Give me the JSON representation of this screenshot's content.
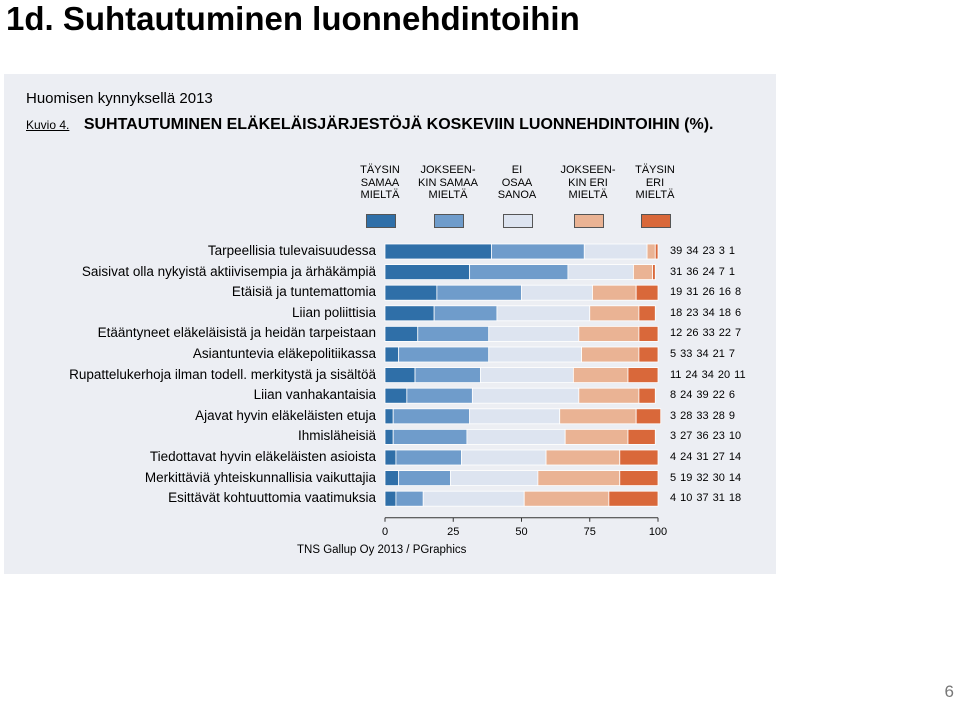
{
  "slide": {
    "title": "1d. Suhtautuminen luonnehdintoihin",
    "page_number": "6"
  },
  "figure": {
    "subtitle": "Huomisen kynnyksellä 2013",
    "figure_label": "Kuvio 4.",
    "figure_title": "SUHTAUTUMINEN ELÄKELÄISJÄRJESTÖJÄ KOSKEVIIN LUONNEHDINTOIHIN (%).",
    "source": "TNS Gallup Oy 2013 / PGraphics"
  },
  "colors": {
    "taysin_samaa": "#2f6fa8",
    "jokseenkin_samaa": "#6f9ccb",
    "ei_osaa": "#dde4f0",
    "jokseenkin_eri": "#eab394",
    "taysin_eri": "#d9683a"
  },
  "chart_data": {
    "type": "bar",
    "orientation": "horizontal",
    "stacked": true,
    "xlim": [
      0,
      100
    ],
    "x_ticks": [
      "0",
      "25",
      "50",
      "75",
      "100"
    ],
    "legend": [
      [
        "TÄYSIN",
        "SAMAA",
        "MIELTÄ"
      ],
      [
        "JOKSEEN-",
        "KIN SAMAA",
        "MIELTÄ"
      ],
      [
        "EI",
        "OSAA",
        "SANOA"
      ],
      [
        "JOKSEEN-",
        "KIN ERI",
        "MIELTÄ"
      ],
      [
        "TÄYSIN",
        "ERI",
        "MIELTÄ"
      ]
    ],
    "categories": [
      "Tarpeellisia tulevaisuudessa",
      "Saisivat olla nykyistä aktiivisempia ja ärhäkämpiä",
      "Etäisiä ja tuntemattomia",
      "Liian poliittisia",
      "Etääntyneet eläkeläisistä ja heidän tarpeistaan",
      "Asiantuntevia eläkepolitiikassa",
      "Rupattelukerhoja ilman todell. merkitystä ja sisältöä",
      "Liian vanhakantaisia",
      "Ajavat hyvin eläkeläisten etuja",
      "Ihmisläheisiä",
      "Tiedottavat hyvin eläkeläisten asioista",
      "Merkittäviä yhteiskunnallisia vaikuttajia",
      "Esittävät kohtuuttomia vaatimuksia"
    ],
    "series": [
      {
        "name": "TÄYSIN SAMAA MIELTÄ",
        "values": [
          39,
          31,
          19,
          18,
          12,
          5,
          11,
          8,
          3,
          3,
          4,
          5,
          4
        ]
      },
      {
        "name": "JOKSEENKIN SAMAA MIELTÄ",
        "values": [
          34,
          36,
          31,
          23,
          26,
          33,
          24,
          24,
          28,
          27,
          24,
          19,
          10
        ]
      },
      {
        "name": "EI OSAA SANOA",
        "values": [
          23,
          24,
          26,
          34,
          33,
          34,
          34,
          39,
          33,
          36,
          31,
          32,
          37
        ]
      },
      {
        "name": "JOKSEENKIN ERI MIELTÄ",
        "values": [
          3,
          7,
          16,
          18,
          22,
          21,
          20,
          22,
          28,
          23,
          27,
          30,
          31
        ]
      },
      {
        "name": "TÄYSIN ERI MIELTÄ",
        "values": [
          1,
          1,
          8,
          6,
          7,
          7,
          11,
          6,
          9,
          10,
          14,
          14,
          18
        ]
      }
    ]
  }
}
